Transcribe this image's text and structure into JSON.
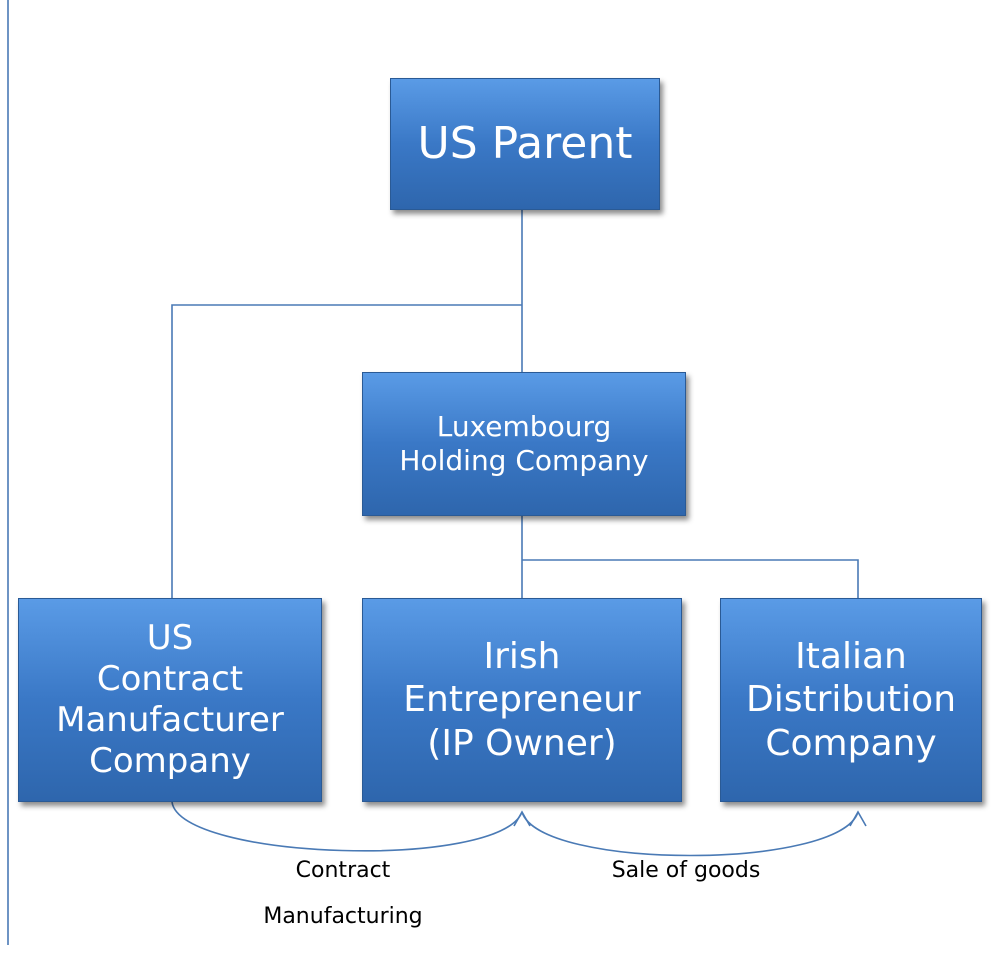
{
  "nodes": [
    {
      "lines": [
        "US Parent"
      ]
    },
    {
      "lines": [
        "Luxembourg",
        "Holding Company"
      ]
    },
    {
      "lines": [
        "US",
        "Contract",
        "Manufacturer",
        "Company"
      ]
    },
    {
      "lines": [
        "Irish",
        "Entrepreneur",
        "(IP Owner)"
      ]
    },
    {
      "lines": [
        "Italian",
        "Distribution",
        "Company"
      ]
    }
  ],
  "flows": [
    {
      "lines": [
        "Contract",
        "Manufacturing"
      ]
    },
    {
      "lines": [
        "Sale of goods"
      ]
    }
  ]
}
